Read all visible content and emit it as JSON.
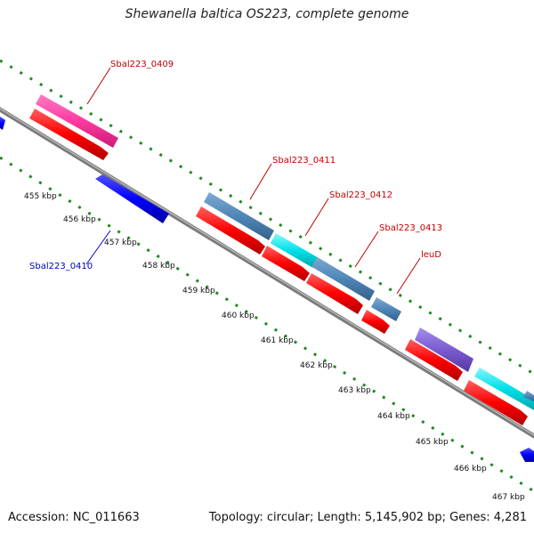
{
  "title": "Shewanella baltica OS223, complete genome",
  "footer": {
    "accession": "Accession: NC_011663",
    "summary": "Topology: circular; Length: 5,145,902 bp; Genes: 4,281"
  },
  "colors": {
    "background": "#ffffff",
    "backbone": "#8c8c8c",
    "tick_marks": "#1f8a1f",
    "forward_label": "#c00000",
    "reverse_label": "#0000c0",
    "cds": "#ff0000",
    "cds_reverse": "#0000ff",
    "feature_pink": "#ff3aa0",
    "feature_steelblue": "#4f86b8",
    "feature_cyan": "#00e0e8",
    "feature_purple": "#7a5cd0"
  },
  "axis": {
    "ticks": [
      "455 kbp",
      "456 kbp",
      "457 kbp",
      "458 kbp",
      "459 kbp",
      "460 kbp",
      "461 kbp",
      "462 kbp",
      "463 kbp",
      "464 kbp",
      "465 kbp",
      "466 kbp",
      "467 kbp"
    ]
  },
  "gene_labels": {
    "forward": [
      "Sbal223_0409",
      "Sbal223_0411",
      "Sbal223_0412",
      "Sbal223_0413",
      "leuD"
    ],
    "reverse": [
      "Sbal223_0410"
    ]
  }
}
